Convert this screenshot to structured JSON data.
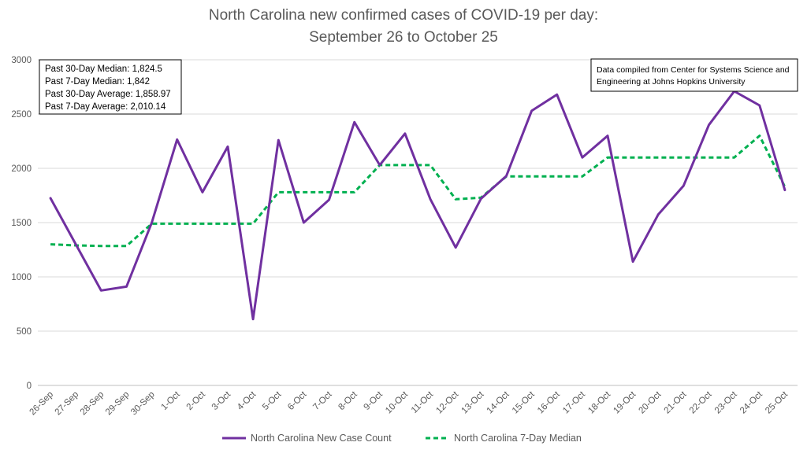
{
  "chart_data": {
    "type": "line",
    "title_lines": [
      "North Carolina new confirmed cases of COVID-19 per day:",
      "September 26 to October 25"
    ],
    "xlabel": "",
    "ylabel": "",
    "categories": [
      "26-Sep",
      "27-Sep",
      "28-Sep",
      "29-Sep",
      "30-Sep",
      "1-Oct",
      "2-Oct",
      "3-Oct",
      "4-Oct",
      "5-Oct",
      "6-Oct",
      "7-Oct",
      "8-Oct",
      "9-Oct",
      "10-Oct",
      "11-Oct",
      "12-Oct",
      "13-Oct",
      "14-Oct",
      "15-Oct",
      "16-Oct",
      "17-Oct",
      "18-Oct",
      "19-Oct",
      "20-Oct",
      "21-Oct",
      "22-Oct",
      "23-Oct",
      "24-Oct",
      "25-Oct"
    ],
    "ylim": [
      0,
      3000
    ],
    "yticks": [
      0,
      500,
      1000,
      1500,
      2000,
      2500,
      3000
    ],
    "grid": true,
    "legend_position": "bottom",
    "series": [
      {
        "name": "North Carolina New Case Count",
        "color": "#7030a0",
        "style": "solid",
        "values": [
          1725,
          1300,
          875,
          910,
          1500,
          2265,
          1780,
          2200,
          610,
          2260,
          1500,
          1710,
          2425,
          2030,
          2320,
          1715,
          1270,
          1720,
          1930,
          2530,
          2680,
          2100,
          2300,
          1140,
          1575,
          1840,
          2400,
          2710,
          2580,
          1800
        ]
      },
      {
        "name": "North Carolina 7-Day Median",
        "color": "#00b050",
        "style": "dashed",
        "values": [
          1300,
          1290,
          1285,
          1285,
          1490,
          1490,
          1490,
          1490,
          1490,
          1780,
          1780,
          1780,
          1780,
          2030,
          2030,
          2030,
          1715,
          1730,
          1925,
          1925,
          1925,
          1925,
          2100,
          2100,
          2100,
          2100,
          2100,
          2100,
          2300,
          1830
        ]
      }
    ],
    "annotations": {
      "stats": [
        "Past 30-Day Median: 1,824.5",
        "Past 7-Day Median: 1,842",
        "Past 30-Day Average: 1,858.97",
        "Past 7-Day Average: 2,010.14"
      ],
      "source": [
        "Data compiled from Center for Systems Science and",
        "Engineering at Johns Hopkins University"
      ]
    }
  },
  "colors": {
    "background": "#ffffff",
    "gridline": "#d9d9d9",
    "text": "#595959",
    "box_border": "#000000"
  }
}
